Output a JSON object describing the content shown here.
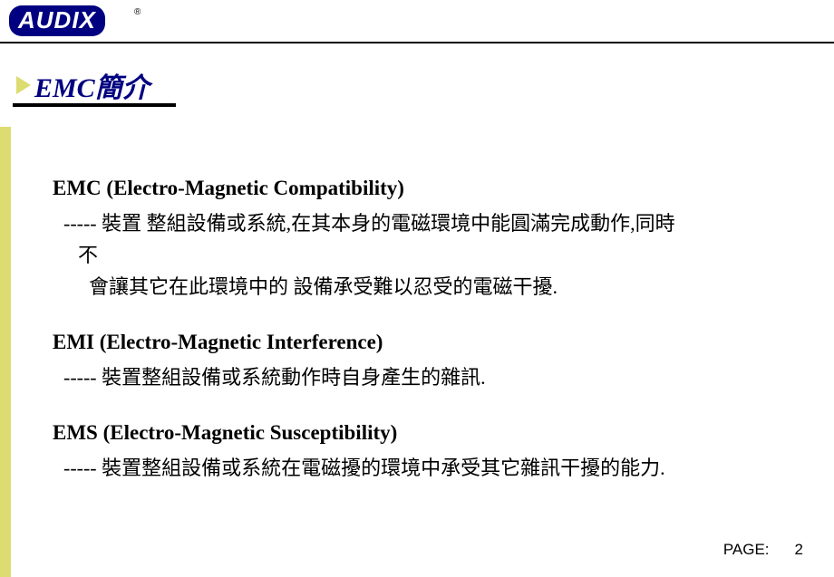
{
  "logo": {
    "text": "AUDIX",
    "registered": "®"
  },
  "title": "EMC簡介",
  "sections": [
    {
      "heading": "EMC (Electro-Magnetic Compatibility)",
      "line1": "----- 裝置 整組設備或系統,在其本身的電磁環境中能圓滿完成動作,同時",
      "line1b": "不",
      "line2": "會讓其它在此環境中的 設備承受難以忍受的電磁干擾."
    },
    {
      "heading": "EMI (Electro-Magnetic Interference)",
      "line1": "----- 裝置整組設備或系統動作時自身產生的雜訊."
    },
    {
      "heading": "EMS (Electro-Magnetic Susceptibility)",
      "line1": "-----  裝置整組設備或系統在電磁擾的環境中承受其它雜訊干擾的能力."
    }
  ],
  "page": {
    "label": "PAGE:",
    "number": "2"
  },
  "colors": {
    "accent": "#dcdc70",
    "brand": "#000080",
    "text": "#000000",
    "background": "#ffffff"
  }
}
